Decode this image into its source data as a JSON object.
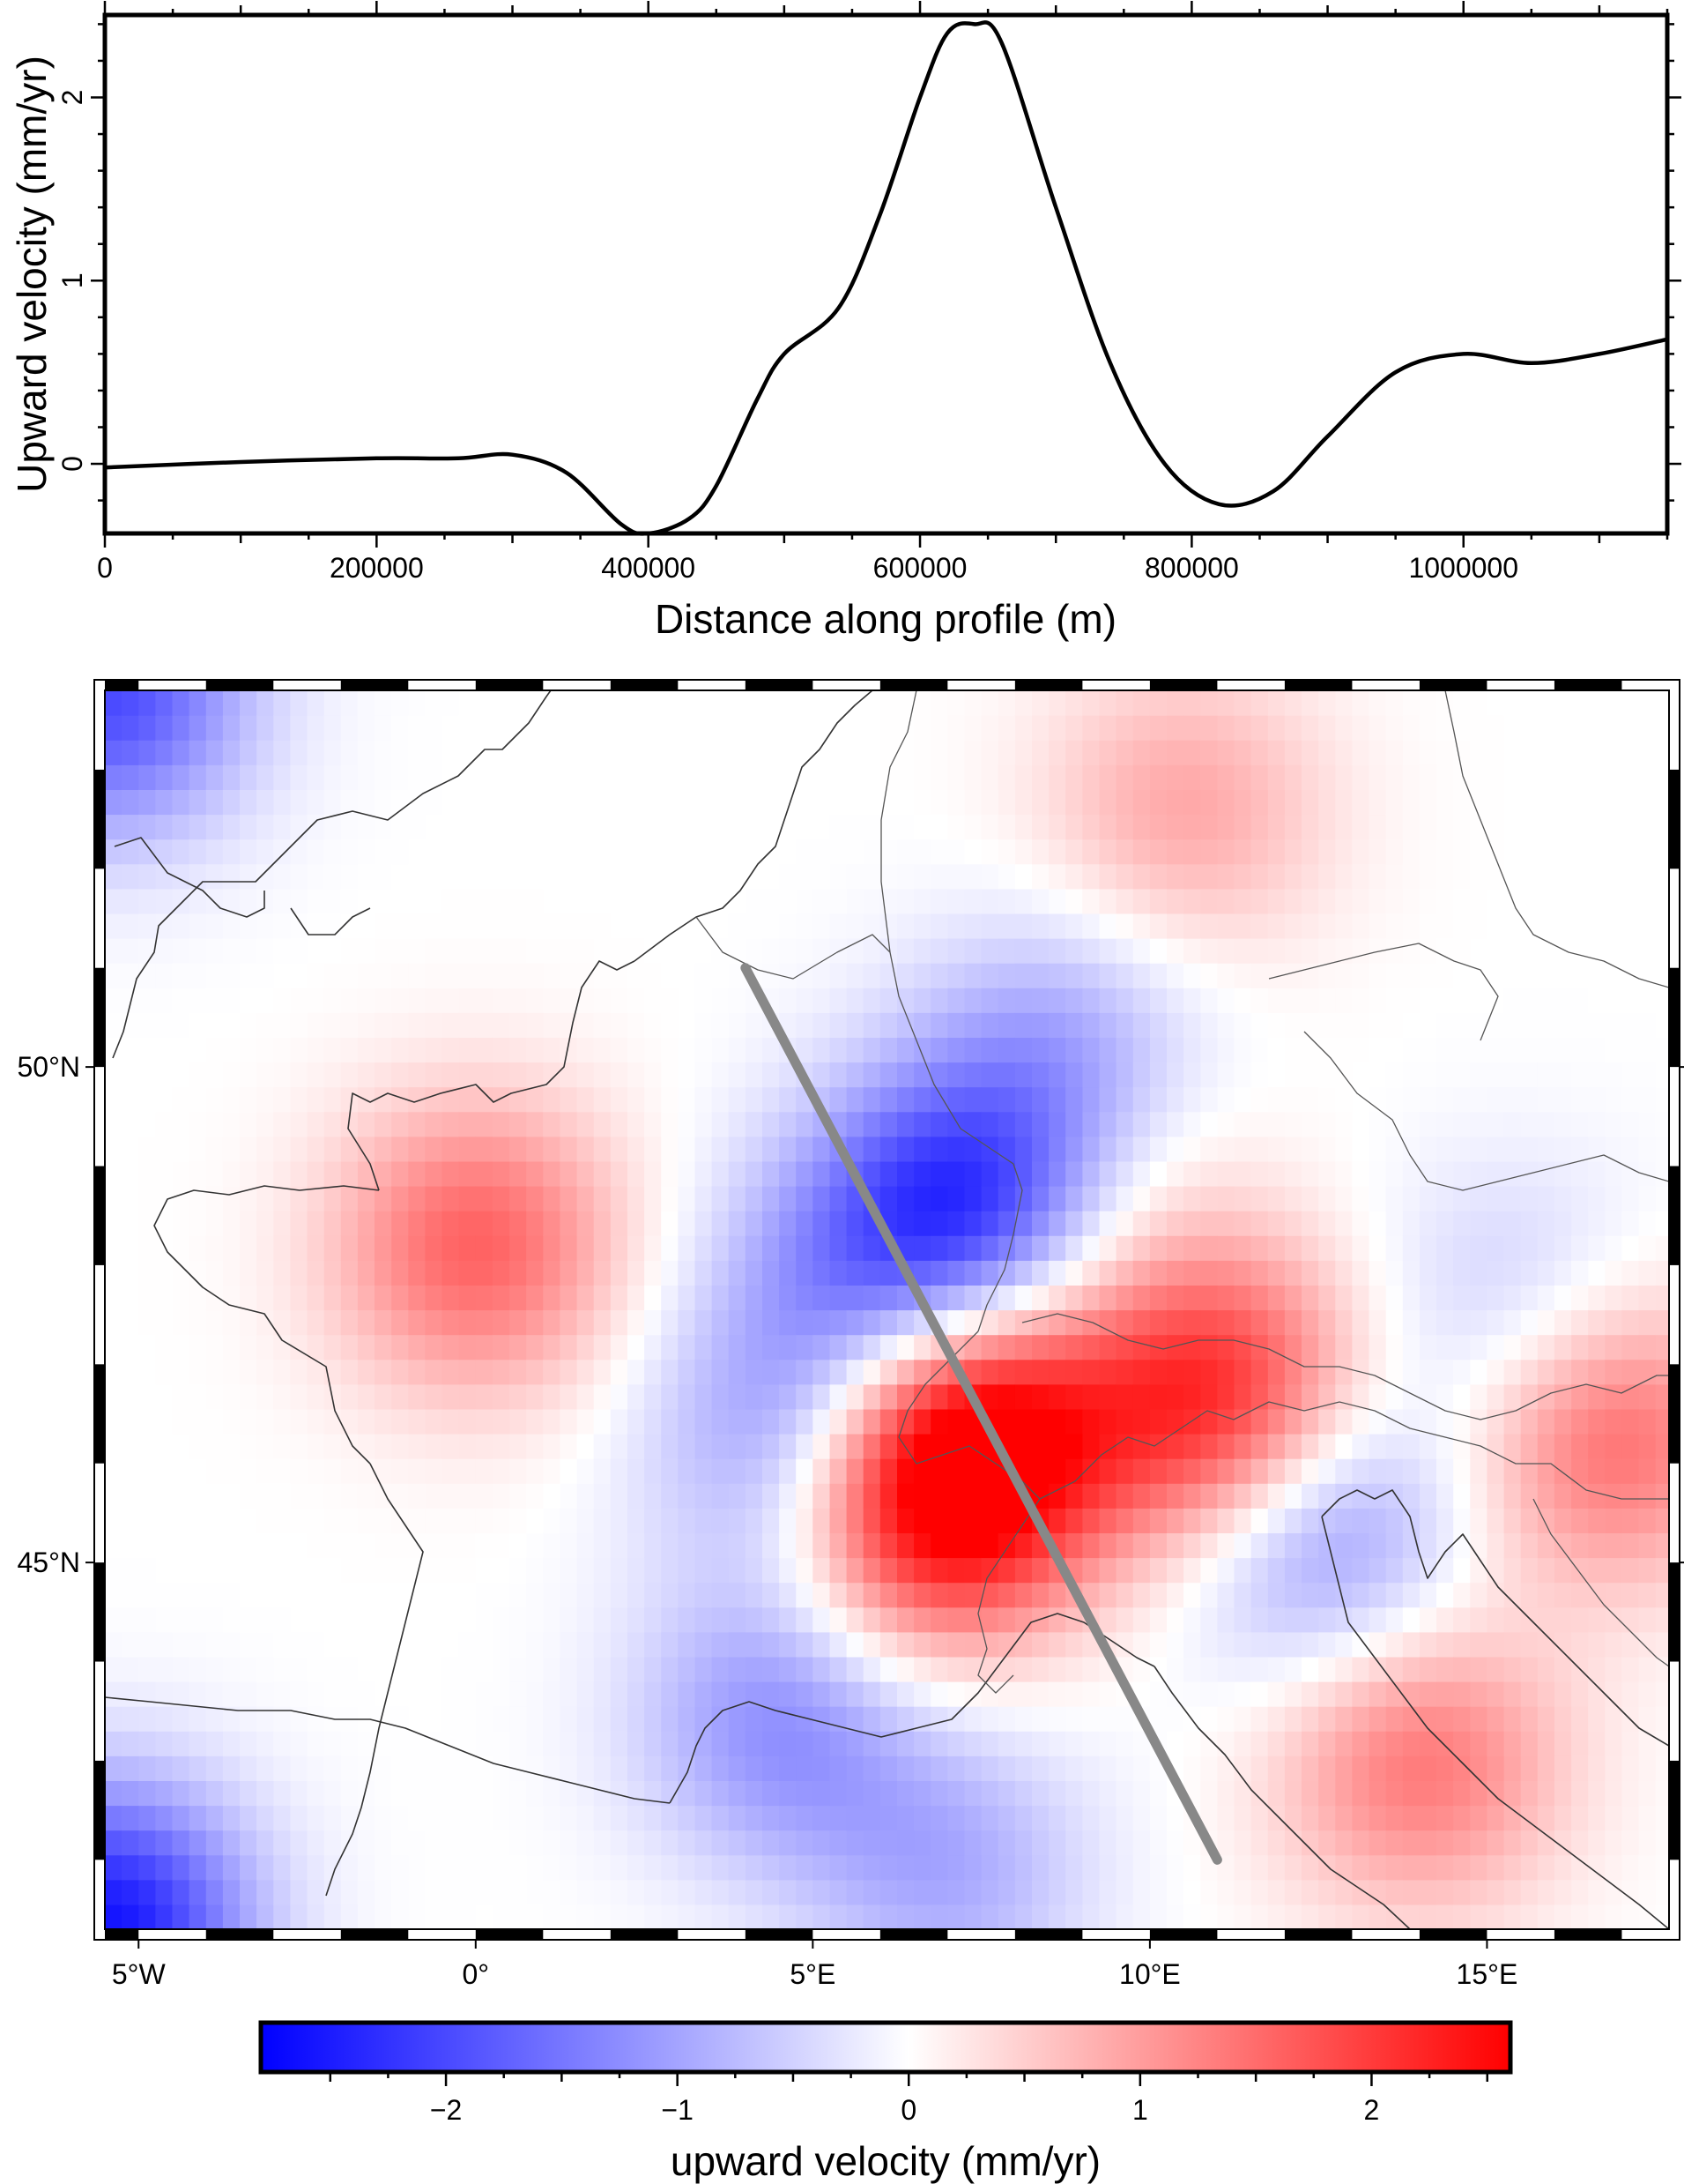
{
  "chart_data": [
    {
      "type": "line",
      "xlabel": "Distance along profile (m)",
      "ylabel": "Upward velocity (mm/yr)",
      "xlim": [
        0,
        1150000
      ],
      "ylim": [
        -0.38,
        2.45
      ],
      "x_ticks": [
        0,
        200000,
        400000,
        600000,
        800000,
        1000000
      ],
      "x_tick_labels": [
        "0",
        "200000",
        "400000",
        "600000",
        "800000",
        "1000000"
      ],
      "y_ticks": [
        0,
        1,
        2
      ],
      "y_tick_labels": [
        "0",
        "1",
        "2"
      ],
      "grid": false,
      "series": [
        {
          "color": "#000000",
          "x": [
            0,
            100000,
            200000,
            260000,
            300000,
            340000,
            380000,
            400000,
            430000,
            450000,
            480000,
            500000,
            540000,
            570000,
            600000,
            620000,
            640000,
            660000,
            700000,
            740000,
            780000,
            820000,
            860000,
            900000,
            950000,
            1000000,
            1050000,
            1100000,
            1150000
          ],
          "y": [
            -0.02,
            0.01,
            0.03,
            0.03,
            0.05,
            -0.05,
            -0.33,
            -0.38,
            -0.3,
            -0.12,
            0.35,
            0.6,
            0.85,
            1.35,
            2.0,
            2.35,
            2.4,
            2.3,
            1.4,
            0.55,
            0.0,
            -0.22,
            -0.15,
            0.15,
            0.5,
            0.6,
            0.55,
            0.6,
            0.68
          ]
        }
      ]
    },
    {
      "type": "heatmap",
      "title": "",
      "x_tick_labels": [
        "5°W",
        "0°",
        "5°E",
        "10°E",
        "15°E"
      ],
      "y_tick_labels": [
        "50°N",
        "45°N"
      ],
      "x_range_deg": [
        -5.5,
        17.7
      ],
      "y_range_deg": [
        41.3,
        53.8
      ],
      "profile_line": {
        "color": "#888888",
        "start_lon": 4.0,
        "start_lat": 51.0,
        "end_lon": 11.0,
        "end_lat": 42.0
      },
      "colorbar": {
        "label": "upward velocity (mm/yr)",
        "range": [
          -2.8,
          2.6
        ],
        "colors": [
          "#0000ff",
          "#ffffff",
          "#ff0000"
        ],
        "tick_labels": [
          "−2",
          "−1",
          "0",
          "1",
          "2"
        ],
        "tick_values": [
          -2,
          -1,
          0,
          1,
          2
        ]
      },
      "field_anomalies": [
        {
          "lon": 0.0,
          "lat": 48.2,
          "value": 1.6
        },
        {
          "lon": 8.7,
          "lat": 50.1,
          "value": -1.0
        },
        {
          "lon": 7.2,
          "lat": 48.5,
          "value": -2.2
        },
        {
          "lon": 5.5,
          "lat": 47.9,
          "value": -0.8
        },
        {
          "lon": 7.5,
          "lat": 46.4,
          "value": 2.3
        },
        {
          "lon": 11.0,
          "lat": 46.6,
          "value": 2.3
        },
        {
          "lon": 6.6,
          "lat": 45.5,
          "value": 2.1
        },
        {
          "lon": 12.5,
          "lat": 45.3,
          "value": -1.4
        },
        {
          "lon": 4.8,
          "lat": 46.2,
          "value": -1.3
        },
        {
          "lon": 4.5,
          "lat": 43.4,
          "value": -1.2
        },
        {
          "lon": 16.8,
          "lat": 46.3,
          "value": 1.6
        },
        {
          "lon": 14.0,
          "lat": 43.0,
          "value": 1.4
        },
        {
          "lon": 10.5,
          "lat": 52.6,
          "value": 0.9
        },
        {
          "lon": 15.5,
          "lat": 47.5,
          "value": -0.7
        },
        {
          "lon": 9.5,
          "lat": 48.8,
          "value": 0.5
        },
        {
          "lon": -5.5,
          "lat": 53.8,
          "value": -2.0
        },
        {
          "lon": -5.5,
          "lat": 41.3,
          "value": -2.6
        },
        {
          "lon": 7.0,
          "lat": 41.9,
          "value": -0.9
        }
      ]
    }
  ]
}
